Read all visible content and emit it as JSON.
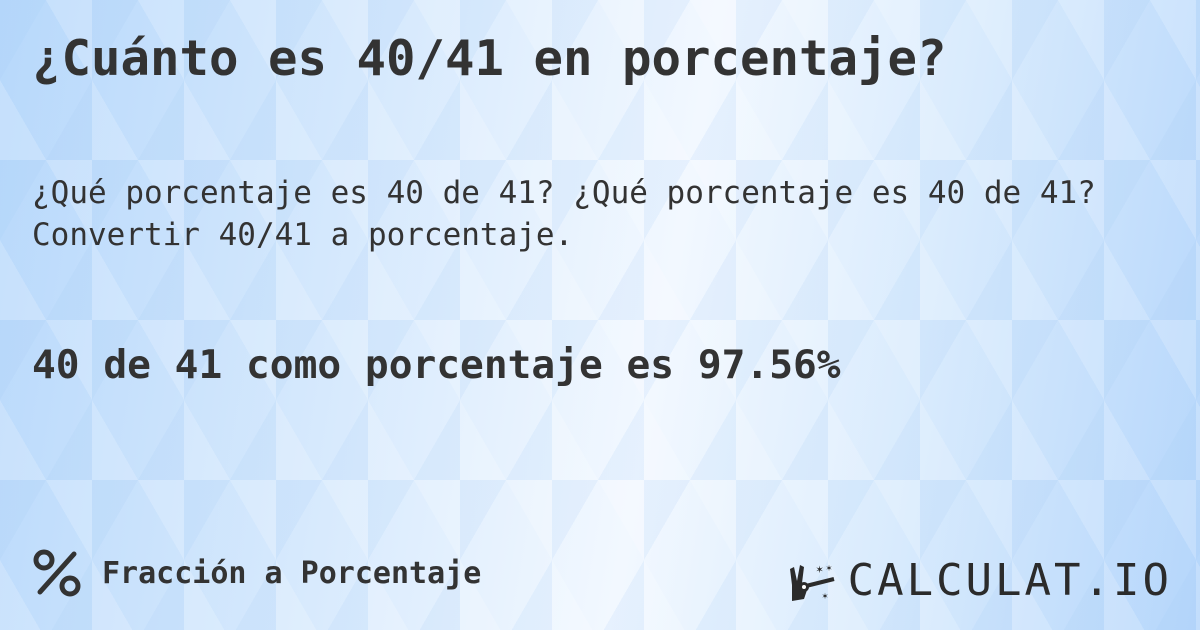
{
  "title": "¿Cuánto es 40/41 en porcentaje?",
  "subtitle_line1": "¿Qué porcentaje es 40 de 41? ¿Qué porcentaje es 40 de 41?",
  "subtitle_line2": "Convertir 40/41 a porcentaje.",
  "result": "40 de 41 como porcentaje es 97.56%",
  "footer": {
    "icon": "percent-icon",
    "label": "Fracción a Porcentaje"
  },
  "logo": {
    "icon": "magic-hand-wand-icon",
    "text": "CALCULAT.IO"
  },
  "colors": {
    "text": "#333333",
    "background": "#d6e9fd"
  }
}
